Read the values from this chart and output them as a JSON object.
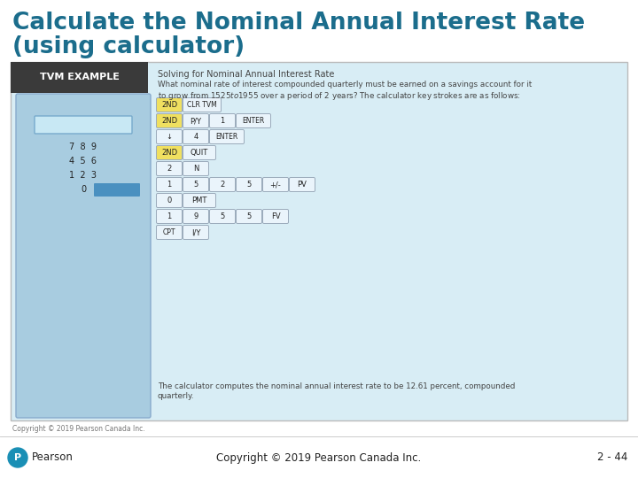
{
  "title_line1": "Calculate the Nominal Annual Interest Rate",
  "title_line2": "(using calculator)",
  "title_color": "#1B6D8C",
  "bg_color": "#FFFFFF",
  "footer_left": "Copyright © 2019 Pearson Canada Inc.",
  "footer_center": "Copyright © 2019 Pearson Canada Inc.",
  "footer_right": "2 - 44",
  "tvm_header": "TVM EXAMPLE",
  "tvm_header_bg": "#3A3A3A",
  "tvm_header_fg": "#FFFFFF",
  "calc_bg": "#A8CCE0",
  "panel_bg": "#D8EDF5",
  "panel_border": "#BBBBBB",
  "subtitle": "Solving for Nominal Annual Interest Rate",
  "description_line1": "What nominal rate of interest compounded quarterly must be earned on a savings account for it",
  "description_line2": "to grow from $1525 to $1955 over a period of 2 years? The calculator key strokes are as follows:",
  "conclusion_line1": "The calculator computes the nominal annual interest rate to be 12.61 percent, compounded",
  "conclusion_line2": "quarterly.",
  "button_bg": "#EAF4FB",
  "button_border": "#9AAABB",
  "yellow_btn": "#F0E060",
  "display_color": "#C8E8F4",
  "keypad_color": "#9EC4D8",
  "blue_bar": "#4A90C0",
  "pearson_blue": "#1A8FB5",
  "footer_sep_color": "#CCCCCC",
  "small_copy_color": "#777777"
}
